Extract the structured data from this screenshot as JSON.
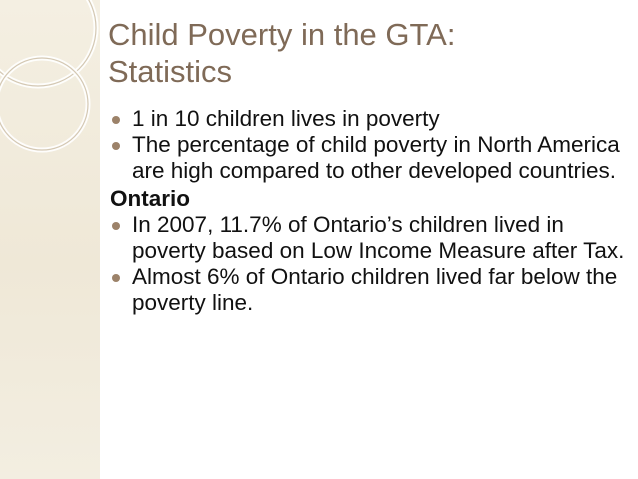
{
  "slide": {
    "title_lines": [
      "Child Poverty in the GTA:",
      "Statistics"
    ],
    "sections": [
      {
        "bullets": [
          "1 in 10 children lives in poverty",
          "The percentage of child poverty in North America are high compared to other developed countries."
        ]
      },
      {
        "heading": "Ontario",
        "bullets": [
          "In 2007, 11.7% of Ontario’s children lived in poverty based on Low Income Measure after Tax.",
          "Almost 6% of Ontario children lived far below the poverty line."
        ]
      }
    ]
  },
  "colors": {
    "title": "#7f6a57",
    "bullet": "#9c8269",
    "side_band": "#f1ebdc",
    "ornament": "#c9bca7"
  }
}
